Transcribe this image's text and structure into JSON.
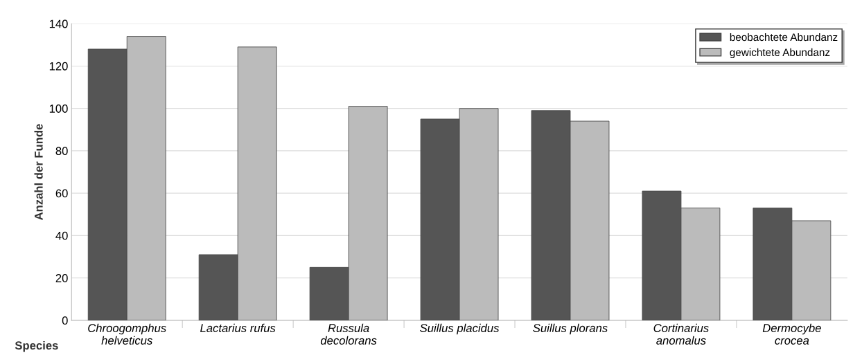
{
  "chart_data": {
    "type": "bar",
    "xlabel": "Species",
    "ylabel": "Anzahl der Funde",
    "categories": [
      "Chroogomphus\nhelveticus",
      "Lactarius rufus",
      "Russula\ndecolorans",
      "Suillus placidus",
      "Suillus plorans",
      "Cortinarius\nanomalus",
      "Dermocybe\ncrocea"
    ],
    "series": [
      {
        "name": "beobachtete Abundanz",
        "color": "#555555",
        "values": [
          128,
          31,
          25,
          95,
          99,
          61,
          53
        ]
      },
      {
        "name": "gewichtete Abundanz",
        "color": "#bbbbbb",
        "values": [
          134,
          129,
          101,
          100,
          94,
          53,
          47
        ]
      }
    ],
    "ylim": [
      0,
      140
    ],
    "yticks": [
      0,
      20,
      40,
      60,
      80,
      100,
      120,
      140
    ],
    "grid": "y",
    "legend": "top right"
  }
}
